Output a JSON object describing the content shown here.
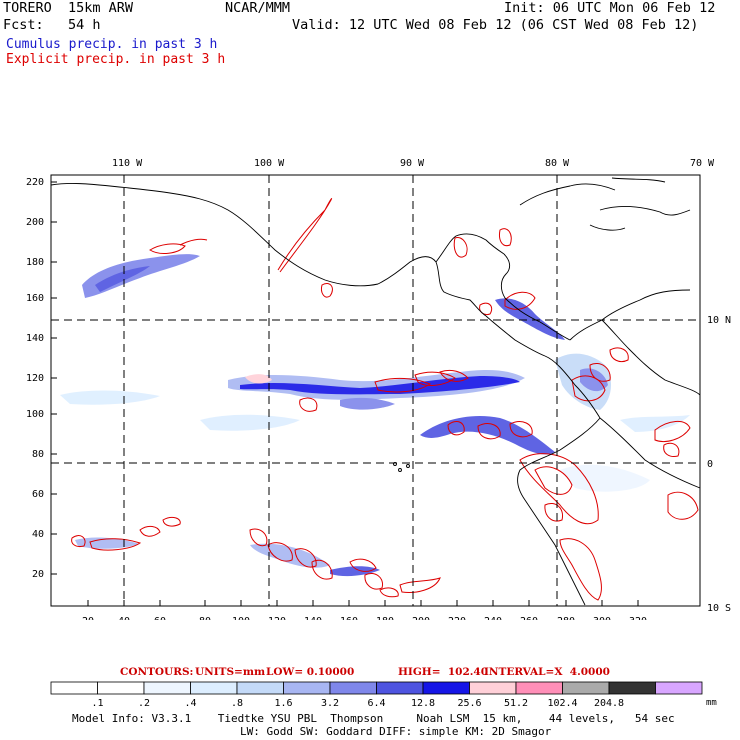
{
  "header": {
    "model": "TORERO  15km ARW",
    "org": "NCAR/MMM",
    "init": "Init: 06 UTC Mon 06 Feb 12",
    "fcst": "Fcst:   54 h",
    "valid": "Valid: 12 UTC Wed 08 Feb 12 (06 CST Wed 08 Feb 12)",
    "subtitle_cumulus": "Cumulus precip. in past 3 h",
    "subtitle_explicit": "Explicit precip. in past 3 h"
  },
  "colors": {
    "cumulus": "#1a1acc",
    "explicit": "#dd0000"
  },
  "map": {
    "lon_labels": [
      "110 W",
      "100 W",
      "90 W",
      "80 W",
      "70 W"
    ],
    "lat_labels": [
      "10 N",
      "0",
      "10 S"
    ],
    "y_ticks": [
      "220",
      "200",
      "180",
      "160",
      "140",
      "120",
      "100",
      "80",
      "60",
      "40",
      "20"
    ],
    "x_ticks": [
      "20",
      "40",
      "60",
      "80",
      "100",
      "120",
      "140",
      "160",
      "180",
      "200",
      "220",
      "240",
      "260",
      "280",
      "300",
      "320"
    ]
  },
  "contours": {
    "label": "CONTOURS:",
    "units": "UNITS=mm",
    "low": "LOW= 0.10000",
    "high": "HIGH=  102.40",
    "interval": "INTERVAL=X  4.0000"
  },
  "colorbar": {
    "colors": [
      "#ffffff",
      "#ffffff",
      "#eef6ff",
      "#ddeeff",
      "#c4daf8",
      "#a8b6f2",
      "#7f87ea",
      "#4e54e0",
      "#1515e6",
      "#ffd0d8",
      "#ff8fb8",
      "#aaaaaa",
      "#333333",
      "#d8a6ff"
    ],
    "labels": [
      ".1",
      ".2",
      ".4",
      ".8",
      "1.6",
      "3.2",
      "6.4",
      "12.8",
      "25.6",
      "51.2",
      "102.4",
      "204.8"
    ],
    "unit": "mm"
  },
  "model_info": {
    "line1": "Model Info: V3.3.1    Tiedtke YSU PBL  Thompson     Noah LSM  15 km,    44 levels,   54 sec",
    "line2": "LW: Godd SW: Goddard DIFF: simple KM: 2D Smagor"
  }
}
